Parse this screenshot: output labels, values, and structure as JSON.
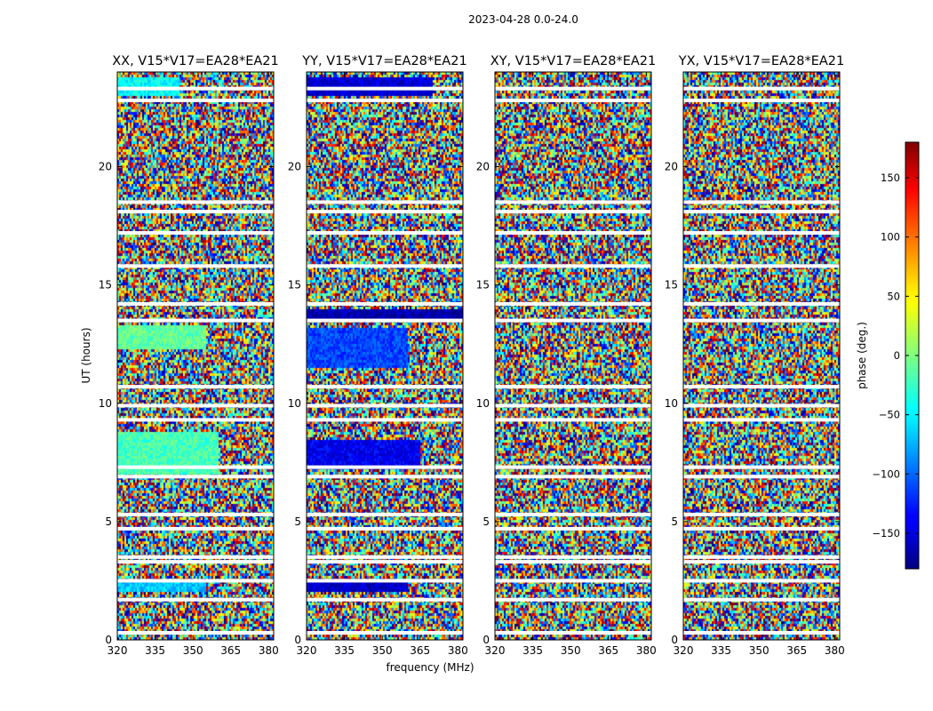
{
  "figure": {
    "suptitle": "2023-04-28 0.0-24.0",
    "xlabel": "frequency (MHz)",
    "ylabel": "UT (hours)",
    "colorbar_label": "phase (deg.)"
  },
  "chart_data": {
    "type": "heatmap",
    "description_units": {
      "x": "MHz",
      "y": "hours",
      "color": "deg"
    },
    "xlim": [
      320,
      382
    ],
    "ylim": [
      0,
      24
    ],
    "xticks": [
      320,
      335,
      350,
      365,
      380
    ],
    "yticks": [
      0,
      5,
      10,
      15,
      20
    ],
    "color_range": [
      -180,
      180
    ],
    "colorbar_ticks": [
      150,
      100,
      50,
      0,
      -50,
      -100,
      -150
    ],
    "colorbar_tick_labels": [
      "150",
      "100",
      "50",
      "0",
      "−50",
      "−100",
      "−150"
    ],
    "colormap": "jet",
    "flagged_hours": [
      0.3,
      1.7,
      2.5,
      3.3,
      3.5,
      4.7,
      5.3,
      6.9,
      7.3,
      9.3,
      9.9,
      10.7,
      13.5,
      14.2,
      15.8,
      17.2,
      18.1,
      18.5,
      22.8,
      23.3
    ],
    "panels": [
      {
        "title": "XX, V15*V17=EA28*EA21",
        "coherent_bands": [
          {
            "hours": [
              2.0,
              2.5
            ],
            "freq": [
              320,
              355
            ],
            "phase": -65
          },
          {
            "hours": [
              7.0,
              8.8
            ],
            "freq": [
              320,
              360
            ],
            "phase": -20
          },
          {
            "hours": [
              12.3,
              13.3
            ],
            "freq": [
              320,
              355
            ],
            "phase": -10
          },
          {
            "hours": [
              23.0,
              23.8
            ],
            "freq": [
              320,
              345
            ],
            "phase": -45
          }
        ]
      },
      {
        "title": "YY, V15*V17=EA28*EA21",
        "coherent_bands": [
          {
            "hours": [
              2.0,
              2.5
            ],
            "freq": [
              320,
              360
            ],
            "phase": -155
          },
          {
            "hours": [
              7.2,
              8.5
            ],
            "freq": [
              320,
              365
            ],
            "phase": -140
          },
          {
            "hours": [
              11.5,
              13.2
            ],
            "freq": [
              320,
              360
            ],
            "phase": -110
          },
          {
            "hours": [
              13.5,
              14.0
            ],
            "freq": [
              320,
              382
            ],
            "phase": -165
          },
          {
            "hours": [
              23.0,
              23.8
            ],
            "freq": [
              320,
              370
            ],
            "phase": -150
          }
        ]
      },
      {
        "title": "XY, V15*V17=EA28*EA21",
        "coherent_bands": []
      },
      {
        "title": "YX, V15*V17=EA28*EA21",
        "coherent_bands": []
      }
    ]
  }
}
